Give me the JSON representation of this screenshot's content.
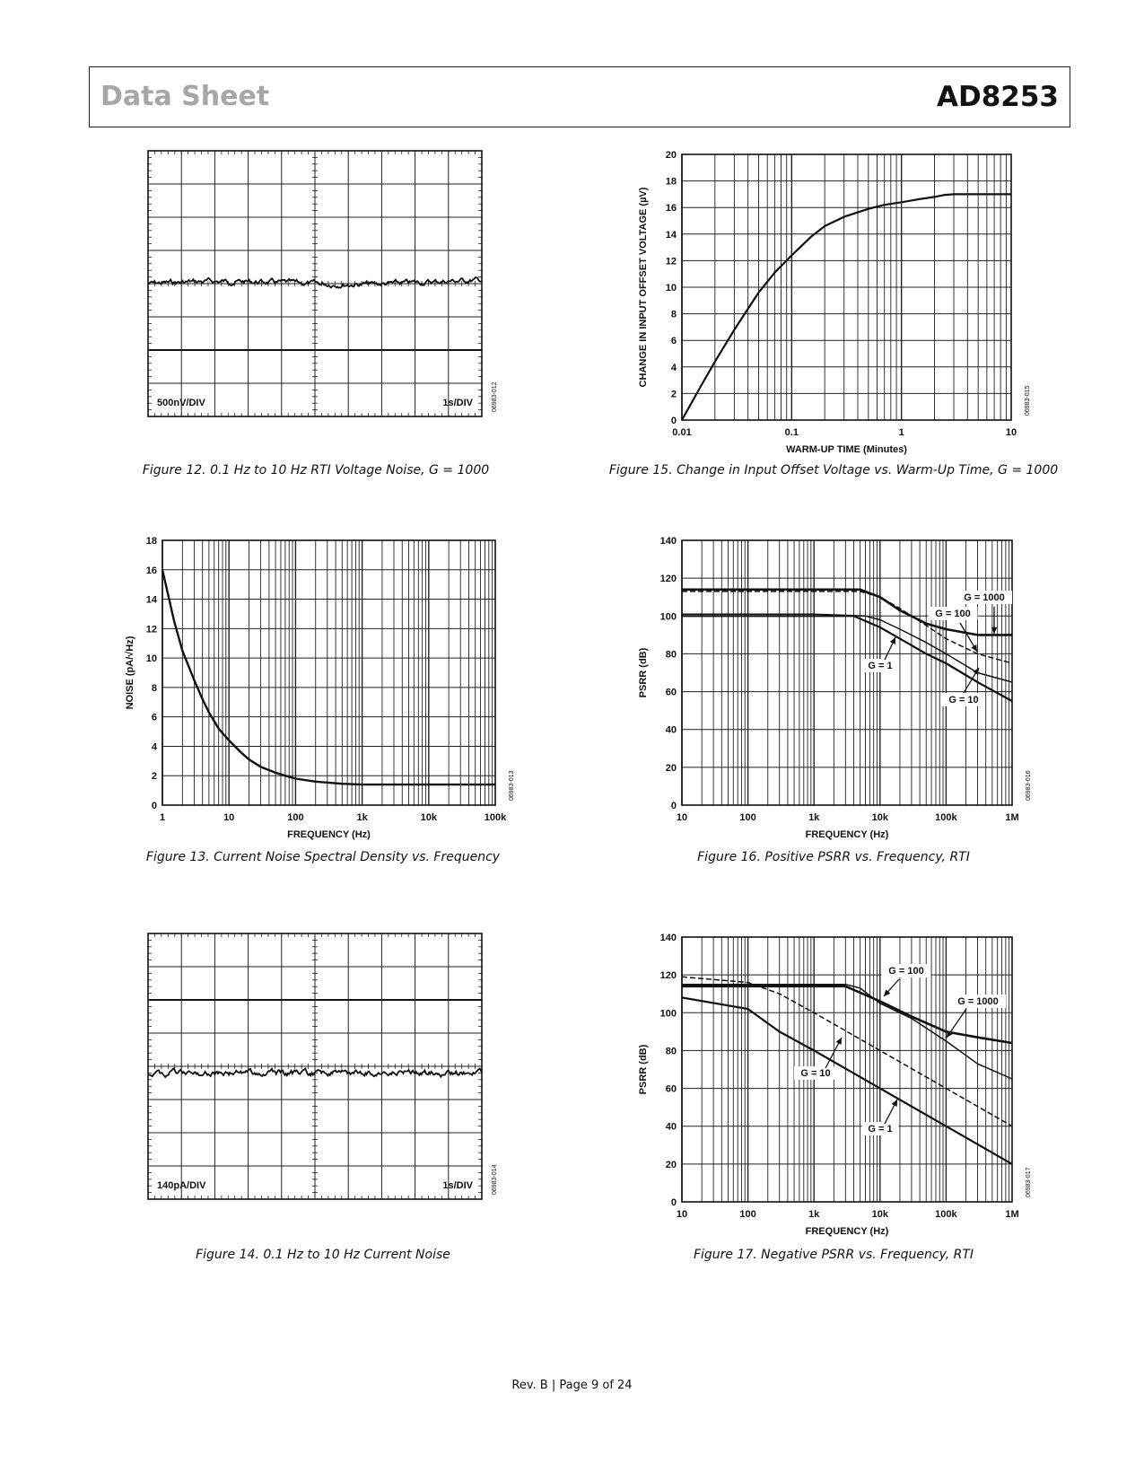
{
  "header": {
    "left_title": "Data Sheet",
    "right_title": "AD8253"
  },
  "footer": {
    "text": "Rev. B | Page 9 of 24"
  },
  "figures": {
    "fig12": {
      "caption": "Figure 12. 0.1 Hz to 10 Hz RTI Voltage Noise, G = 1000",
      "code": "06983-012"
    },
    "fig13": {
      "caption": "Figure 13. Current Noise Spectral Density vs. Frequency",
      "code": "06983-013"
    },
    "fig14": {
      "caption": "Figure 14. 0.1 Hz to 10 Hz Current Noise",
      "code": "06983-014"
    },
    "fig15": {
      "caption": "Figure 15. Change in Input Offset Voltage vs. Warm-Up Time, G = 1000",
      "code": "06983-015"
    },
    "fig16": {
      "caption": "Figure 16. Positive PSRR vs. Frequency, RTI",
      "code": "06983-016"
    },
    "fig17": {
      "caption": "Figure 17. Negative PSRR vs. Frequency, RTI",
      "code": "06983-017"
    }
  },
  "chart_data": [
    {
      "id": "fig12",
      "type": "line",
      "title": "",
      "xlabel": "",
      "ylabel": "",
      "scale_labels": [
        "500nV/DIV",
        "1s/DIV"
      ],
      "x_divisions": 10,
      "y_divisions": 8,
      "marker_y_div": 2,
      "trace_baseline_div": 4.0
    },
    {
      "id": "fig13",
      "type": "line",
      "title": "",
      "xlabel": "FREQUENCY (Hz)",
      "ylabel": "NOISE (pA/√Hz)",
      "xscale": "log",
      "xlim": [
        1,
        100000
      ],
      "ylim": [
        0,
        18
      ],
      "xticks": [
        "1",
        "10",
        "100",
        "1k",
        "10k",
        "100k"
      ],
      "yticks": [
        "0",
        "2",
        "4",
        "6",
        "8",
        "10",
        "12",
        "14",
        "16",
        "18"
      ],
      "series": [
        {
          "x": [
            1,
            1.5,
            2,
            3,
            4,
            5,
            7,
            10,
            15,
            20,
            30,
            50,
            70,
            100,
            200,
            500,
            1000,
            10000,
            100000
          ],
          "y": [
            16,
            12.5,
            10.5,
            8.5,
            7.2,
            6.3,
            5.2,
            4.4,
            3.6,
            3.1,
            2.6,
            2.2,
            2.0,
            1.8,
            1.6,
            1.45,
            1.4,
            1.4,
            1.4
          ]
        }
      ]
    },
    {
      "id": "fig14",
      "type": "line",
      "title": "",
      "xlabel": "",
      "ylabel": "",
      "scale_labels": [
        "140pA/DIV",
        "1s/DIV"
      ],
      "x_divisions": 10,
      "y_divisions": 8,
      "marker_y_div": 6,
      "trace_baseline_div": 3.8
    },
    {
      "id": "fig15",
      "type": "line",
      "title": "",
      "xlabel": "WARM-UP TIME (Minutes)",
      "ylabel": "CHANGE IN INPUT OFFSET VOLTAGE (µV)",
      "xscale": "log",
      "xlim": [
        0.01,
        10
      ],
      "ylim": [
        0,
        20
      ],
      "xticks": [
        "0.01",
        "0.1",
        "1",
        "10"
      ],
      "yticks": [
        "0",
        "2",
        "4",
        "6",
        "8",
        "10",
        "12",
        "14",
        "16",
        "18",
        "20"
      ],
      "series": [
        {
          "x": [
            0.01,
            0.015,
            0.02,
            0.03,
            0.05,
            0.07,
            0.1,
            0.15,
            0.2,
            0.3,
            0.5,
            0.7,
            1,
            1.5,
            2,
            2.5,
            3,
            5,
            10
          ],
          "y": [
            0,
            2.6,
            4.4,
            6.8,
            9.6,
            11.1,
            12.4,
            13.8,
            14.6,
            15.3,
            15.9,
            16.2,
            16.4,
            16.65,
            16.8,
            16.95,
            17,
            17,
            17
          ]
        }
      ]
    },
    {
      "id": "fig16",
      "type": "line",
      "title": "",
      "xlabel": "FREQUENCY (Hz)",
      "ylabel": "PSRR (dB)",
      "xscale": "log",
      "xlim": [
        10,
        1000000
      ],
      "ylim": [
        0,
        140
      ],
      "xticks": [
        "10",
        "100",
        "1k",
        "10k",
        "100k",
        "1M"
      ],
      "yticks": [
        "0",
        "20",
        "40",
        "60",
        "80",
        "100",
        "120",
        "140"
      ],
      "series": [
        {
          "name": "G = 1000",
          "x": [
            10,
            1000,
            5000,
            10000,
            20000,
            50000,
            100000,
            300000,
            1000000
          ],
          "y": [
            114,
            114,
            114,
            110,
            103,
            96,
            93,
            90,
            90
          ]
        },
        {
          "name": "G = 100",
          "x": [
            10,
            1000,
            5000,
            10000,
            20000,
            50000,
            100000,
            300000,
            1000000
          ],
          "y": [
            113,
            113,
            113,
            110,
            104,
            95,
            88,
            80,
            75
          ]
        },
        {
          "name": "G = 10",
          "x": [
            10,
            1000,
            6000,
            10000,
            20000,
            50000,
            100000,
            300000,
            1000000
          ],
          "y": [
            101,
            101,
            100,
            98,
            93,
            86,
            80,
            70,
            65
          ]
        },
        {
          "name": "G = 1",
          "x": [
            10,
            1000,
            4000,
            10000,
            20000,
            50000,
            100000,
            300000,
            1000000
          ],
          "y": [
            100,
            100,
            100,
            94,
            88,
            80,
            75,
            65,
            55
          ]
        }
      ]
    },
    {
      "id": "fig17",
      "type": "line",
      "title": "",
      "xlabel": "FREQUENCY (Hz)",
      "ylabel": "PSRR (dB)",
      "xscale": "log",
      "xlim": [
        10,
        1000000
      ],
      "ylim": [
        0,
        140
      ],
      "xticks": [
        "10",
        "100",
        "1k",
        "10k",
        "100k",
        "1M"
      ],
      "yticks": [
        "0",
        "20",
        "40",
        "60",
        "80",
        "100",
        "120",
        "140"
      ],
      "series": [
        {
          "name": "G = 1000",
          "x": [
            10,
            3000,
            10000,
            30000,
            100000,
            300000,
            1000000
          ],
          "y": [
            114,
            114,
            106,
            98,
            90,
            87,
            84
          ]
        },
        {
          "name": "G = 100",
          "x": [
            10,
            3000,
            5000,
            10000,
            30000,
            100000,
            300000,
            1000000
          ],
          "y": [
            115,
            115,
            113,
            105,
            97,
            85,
            73,
            65
          ]
        },
        {
          "name": "G = 10",
          "x": [
            10,
            100,
            300,
            1000,
            10000,
            100000,
            1000000
          ],
          "y": [
            119,
            116,
            110,
            100,
            80,
            60,
            40
          ]
        },
        {
          "name": "G = 1",
          "x": [
            10,
            100,
            300,
            1000,
            10000,
            100000,
            1000000
          ],
          "y": [
            108,
            102,
            90,
            80,
            60,
            40,
            20
          ]
        }
      ]
    }
  ]
}
